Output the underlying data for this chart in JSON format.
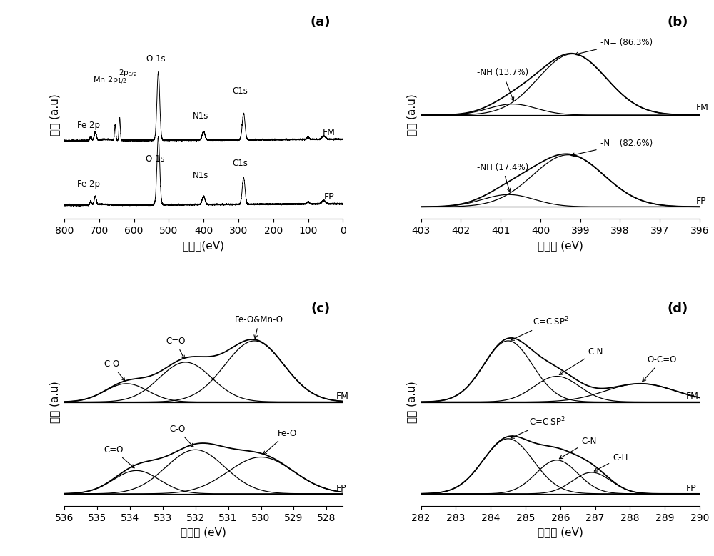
{
  "fig_width": 10.0,
  "fig_height": 7.78,
  "background_color": "#ffffff",
  "panel_a": {
    "xlabel": "结合能(eV)",
    "ylabel": "强度 (a.u)",
    "label": "(a)"
  },
  "panel_b": {
    "xlabel": "结合能 (eV)",
    "ylabel": "强度 (a.u)",
    "label": "(b)"
  },
  "panel_c": {
    "xlabel": "结合能 (eV)",
    "ylabel": "强度 (a.u)",
    "label": "(c)"
  },
  "panel_d": {
    "xlabel": "结合能 (eV)",
    "ylabel": "强度 (a.u)",
    "label": "(d)"
  }
}
